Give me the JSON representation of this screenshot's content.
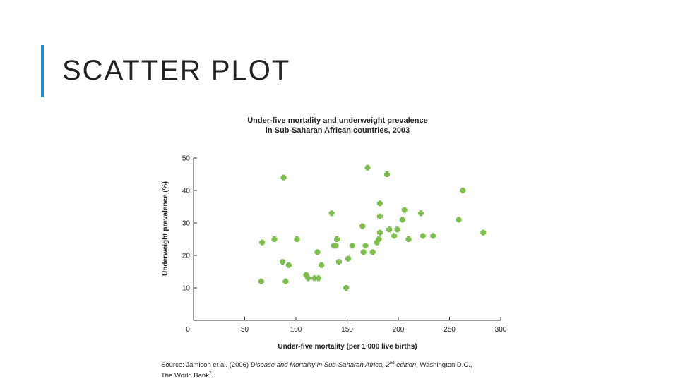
{
  "slide": {
    "title": "SCATTER PLOT",
    "accent_color": "#1f8fd0"
  },
  "chart_data": {
    "type": "scatter",
    "title_line1": "Under-five mortality and underweight prevalence",
    "title_line2": "in Sub-Saharan African countries, 2003",
    "xlabel": "Under-five mortality (per 1 000 live births)",
    "ylabel": "Underweight prevalence (%)",
    "xlim": [
      0,
      300
    ],
    "ylim": [
      0,
      50
    ],
    "x_ticks": [
      "0",
      "50",
      "100",
      "150",
      "200",
      "250",
      "300"
    ],
    "y_ticks": [
      "10",
      "20",
      "30",
      "40",
      "50"
    ],
    "marker_color": "#7dbd4a",
    "grid": false,
    "points": [
      {
        "x": 66,
        "y": 12
      },
      {
        "x": 67,
        "y": 24
      },
      {
        "x": 79,
        "y": 25
      },
      {
        "x": 87,
        "y": 18
      },
      {
        "x": 88,
        "y": 44
      },
      {
        "x": 90,
        "y": 12
      },
      {
        "x": 93,
        "y": 17
      },
      {
        "x": 101,
        "y": 25
      },
      {
        "x": 110,
        "y": 14
      },
      {
        "x": 112,
        "y": 13
      },
      {
        "x": 118,
        "y": 13
      },
      {
        "x": 121,
        "y": 21
      },
      {
        "x": 122,
        "y": 13
      },
      {
        "x": 125,
        "y": 17
      },
      {
        "x": 135,
        "y": 33
      },
      {
        "x": 137,
        "y": 23
      },
      {
        "x": 139,
        "y": 23
      },
      {
        "x": 140,
        "y": 25
      },
      {
        "x": 142,
        "y": 18
      },
      {
        "x": 149,
        "y": 10
      },
      {
        "x": 151,
        "y": 19
      },
      {
        "x": 155,
        "y": 23
      },
      {
        "x": 165,
        "y": 29
      },
      {
        "x": 166,
        "y": 21
      },
      {
        "x": 168,
        "y": 23
      },
      {
        "x": 170,
        "y": 47
      },
      {
        "x": 175,
        "y": 21
      },
      {
        "x": 179,
        "y": 24
      },
      {
        "x": 181,
        "y": 25
      },
      {
        "x": 182,
        "y": 27
      },
      {
        "x": 182,
        "y": 32
      },
      {
        "x": 182,
        "y": 36
      },
      {
        "x": 189,
        "y": 45
      },
      {
        "x": 191,
        "y": 28
      },
      {
        "x": 196,
        "y": 26
      },
      {
        "x": 199,
        "y": 28
      },
      {
        "x": 204,
        "y": 31
      },
      {
        "x": 206,
        "y": 34
      },
      {
        "x": 210,
        "y": 25
      },
      {
        "x": 222,
        "y": 33
      },
      {
        "x": 224,
        "y": 26
      },
      {
        "x": 234,
        "y": 26
      },
      {
        "x": 259,
        "y": 31
      },
      {
        "x": 263,
        "y": 40
      },
      {
        "x": 283,
        "y": 27
      }
    ]
  },
  "source": {
    "prefix": "Source: Jamison et al. (2006) ",
    "book": "Disease and Mortality in Sub-Saharan Africa, 2",
    "sup1": "nd",
    "edition": " edition",
    "place": ", Washington D.C.,",
    "line2": "The World Bank",
    "sup2": "7",
    "end": "."
  }
}
